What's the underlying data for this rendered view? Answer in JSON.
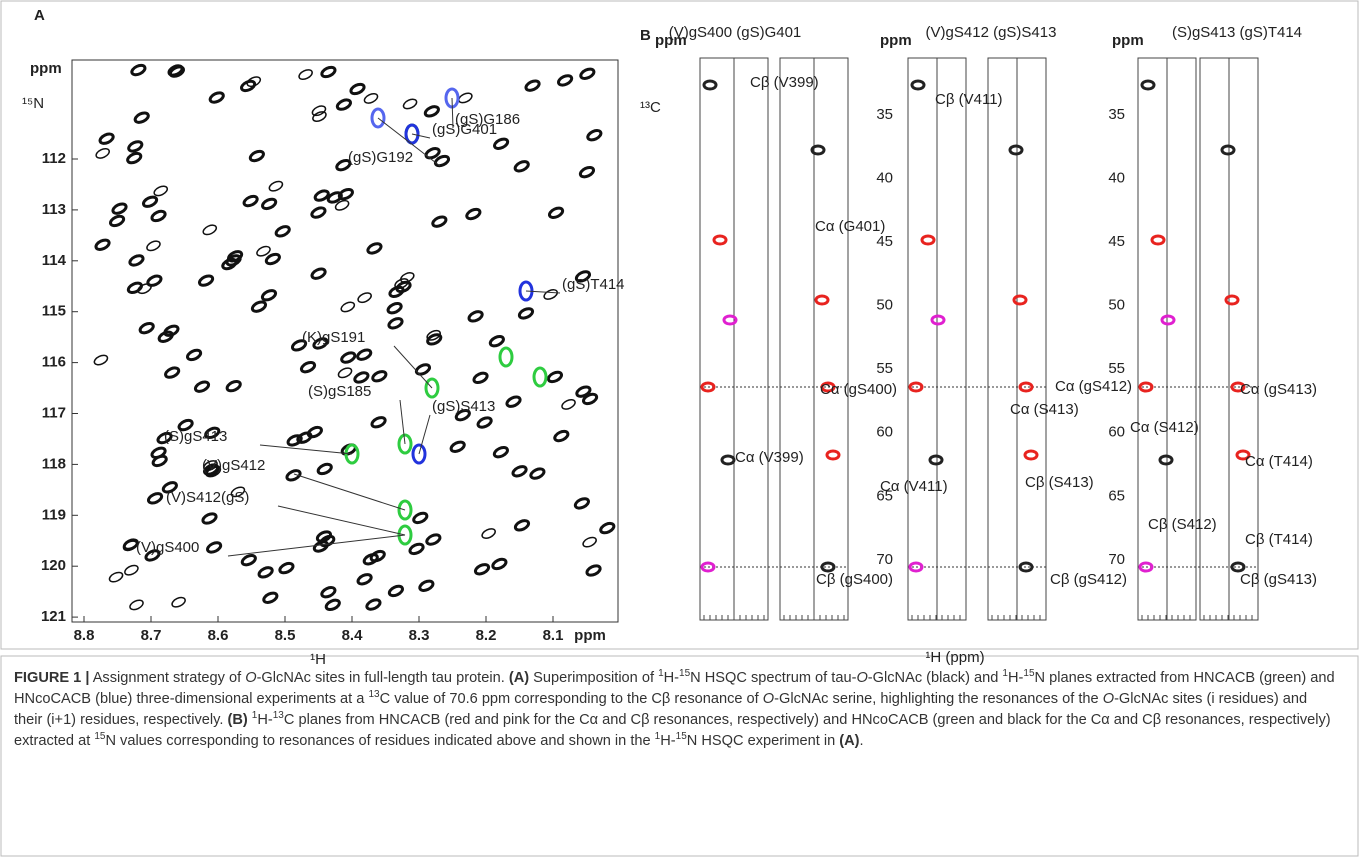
{
  "panel_a": {
    "label": "A",
    "y_unit": "ppm",
    "y_label": "¹⁵N",
    "y_ticks": [
      112,
      113,
      114,
      115,
      116,
      117,
      118,
      119,
      120,
      121
    ],
    "x_ticks": [
      8.8,
      8.7,
      8.6,
      8.5,
      8.4,
      8.3,
      8.2,
      8.1
    ],
    "x_unit": "ppm",
    "x_label": "¹H",
    "peak_labels": [
      "(gS)G186",
      "(gS)G192",
      "(gS)G401",
      "(gS)T414",
      "(K)gS191",
      "(S)gS185",
      "(gS)S413",
      "(S)gS413",
      "(V)gS412",
      "(V)S412(gS)",
      "(V)gS400"
    ]
  },
  "panel_b": {
    "label": "B",
    "x_label": "¹H (ppm)",
    "y_label": "¹³C",
    "strips": [
      {
        "title": "(V)gS400 (gS)G401",
        "y_unit": "ppm",
        "y_ticks": []
      },
      {
        "title": "(V)gS412 (gS)S413",
        "y_unit": "ppm",
        "y_ticks": [
          35,
          40,
          45,
          50,
          55,
          60,
          65,
          70
        ]
      },
      {
        "title": "(S)gS413 (gS)T414",
        "y_unit": "ppm",
        "y_ticks": [
          35,
          40,
          45,
          50,
          55,
          60,
          65,
          70
        ]
      }
    ],
    "annotations": [
      {
        "text": "Cβ (V399)",
        "color": "#222222"
      },
      {
        "text": "Cα (G401)",
        "color": "#e8231f"
      },
      {
        "text": "Cα (gS400)",
        "color": "#3a9a5a"
      },
      {
        "text": "Cα (V399)",
        "color": "#3a9a5a"
      },
      {
        "text": "Cβ (gS400)",
        "color": "#222222"
      },
      {
        "text": "Cβ (V411)",
        "color": "#222222"
      },
      {
        "text": "Cα (gS412)",
        "color": "#3a9a5a"
      },
      {
        "text": "Cα (S413)",
        "color": "#e8231f"
      },
      {
        "text": "Cα (V411)",
        "color": "#3a9a5a"
      },
      {
        "text": "Cβ (S413)",
        "color": "#e020d0"
      },
      {
        "text": "Cβ (gS412)",
        "color": "#222222"
      },
      {
        "text": "Cα (gS413)",
        "color": "#3a9a5a"
      },
      {
        "text": "Cα (S412)",
        "color": "#3a9a5a"
      },
      {
        "text": "Cα (T414)",
        "color": "#e8231f"
      },
      {
        "text": "Cβ (S412)",
        "color": "#222222"
      },
      {
        "text": "Cβ (T414)",
        "color": "#e020d0"
      },
      {
        "text": "Cβ (gS413)",
        "color": "#222222"
      }
    ]
  },
  "caption": {
    "runs": [
      {
        "text": "FIGURE 1 |",
        "style": "b"
      },
      {
        "text": " Assignment strategy of ",
        "style": "n"
      },
      {
        "text": "O",
        "style": "i"
      },
      {
        "text": "-GlcNAc sites in full-length tau protein. ",
        "style": "n"
      },
      {
        "text": "(A)",
        "style": "b"
      },
      {
        "text": " Superimposition of ",
        "style": "n"
      },
      {
        "text": "1",
        "style": "sup"
      },
      {
        "text": "H-",
        "style": "n"
      },
      {
        "text": "15",
        "style": "sup"
      },
      {
        "text": "N HSQC spectrum of tau-",
        "style": "n"
      },
      {
        "text": "O",
        "style": "i"
      },
      {
        "text": "-GlcNAc (black) and ",
        "style": "n"
      },
      {
        "text": "1",
        "style": "sup"
      },
      {
        "text": "H-",
        "style": "n"
      },
      {
        "text": "15",
        "style": "sup"
      },
      {
        "text": "N planes extracted from HNCACB (green) and HNcoCACB (blue) three-dimensional experiments at a ",
        "style": "n"
      },
      {
        "text": "13",
        "style": "sup"
      },
      {
        "text": "C value of 70.6 ppm corresponding to the Cβ resonance of ",
        "style": "n"
      },
      {
        "text": "O",
        "style": "i"
      },
      {
        "text": "-GlcNAc serine, highlighting the resonances of the ",
        "style": "n"
      },
      {
        "text": "O",
        "style": "i"
      },
      {
        "text": "-GlcNAc sites (i residues) and their (i+1) residues, respectively. ",
        "style": "n"
      },
      {
        "text": "(B) ",
        "style": "b"
      },
      {
        "text": "1",
        "style": "sup"
      },
      {
        "text": "H-",
        "style": "n"
      },
      {
        "text": "13",
        "style": "sup"
      },
      {
        "text": "C planes from HNCACB (red and pink for the Cα and Cβ resonances, respectively) and HNcoCACB (green and black for the Cα and Cβ resonances, respectively) extracted at ",
        "style": "n"
      },
      {
        "text": "15",
        "style": "sup"
      },
      {
        "text": "N values corresponding to resonances of residues indicated above and shown in the ",
        "style": "n"
      },
      {
        "text": "1",
        "style": "sup"
      },
      {
        "text": "H-",
        "style": "n"
      },
      {
        "text": "15",
        "style": "sup"
      },
      {
        "text": "N HSQC experiment in ",
        "style": "n"
      },
      {
        "text": "(A)",
        "style": "b"
      },
      {
        "text": ".",
        "style": "n"
      }
    ]
  }
}
